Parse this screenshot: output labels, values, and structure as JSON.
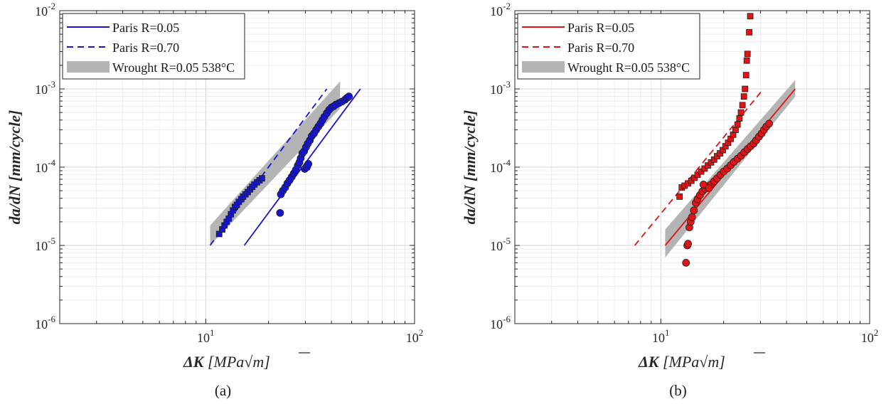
{
  "chart_data": [
    {
      "type": "scatter",
      "panel_label": "(a)",
      "xlabel_symbol": "ΔK",
      "xlabel_unit_pre": "[MPa",
      "xlabel_unit_post": "m]",
      "ylabel_text": "da/dN [mm/cycle]",
      "xscale": "log",
      "yscale": "log",
      "xlim": [
        2,
        100
      ],
      "ylim": [
        1e-06,
        0.01
      ],
      "grid": true,
      "legend_position": "top-left",
      "x_ticks": [
        {
          "value": 10,
          "base": "10",
          "exp": "1"
        },
        {
          "value": 100,
          "base": "10",
          "exp": "2"
        }
      ],
      "y_ticks": [
        {
          "value": 1e-06,
          "base": "10",
          "exp": "-6"
        },
        {
          "value": 1e-05,
          "base": "10",
          "exp": "-5"
        },
        {
          "value": 0.0001,
          "base": "10",
          "exp": "-4"
        },
        {
          "value": 0.001,
          "base": "10",
          "exp": "-3"
        },
        {
          "value": 0.01,
          "base": "10",
          "exp": "-2"
        }
      ],
      "legend": [
        {
          "label": "Paris R=0.05",
          "style": "solid"
        },
        {
          "label": "Paris R=0.70",
          "style": "dashed"
        },
        {
          "label": "Wrought R=0.05 538°C",
          "style": "band"
        }
      ],
      "color": "#1414d2",
      "band_color": "#b4b4b4",
      "band": {
        "x": [
          10.5,
          44
        ],
        "y_low": [
          1e-05,
          0.00056
        ],
        "y_high": [
          1.8e-05,
          0.00125
        ]
      },
      "paris_lines": [
        {
          "name": "Paris R=0.05",
          "style": "solid",
          "x": [
            15.3,
            55
          ],
          "y": [
            1e-05,
            0.001
          ]
        },
        {
          "name": "Paris R=0.70",
          "style": "dashed",
          "x": [
            10.5,
            38
          ],
          "y": [
            1e-05,
            0.001
          ]
        }
      ],
      "series": [
        {
          "marker": "square",
          "points": [
            [
              11.6,
              1.4e-05
            ],
            [
              12.0,
              1.6e-05
            ],
            [
              12.3,
              1.8e-05
            ],
            [
              12.6,
              2e-05
            ],
            [
              12.9,
              2.2e-05
            ],
            [
              13.2,
              2.5e-05
            ],
            [
              13.5,
              2.8e-05
            ],
            [
              13.8,
              3.1e-05
            ],
            [
              14.1,
              3.3e-05
            ],
            [
              14.4,
              3.6e-05
            ],
            [
              14.8,
              3.9e-05
            ],
            [
              15.1,
              4.2e-05
            ],
            [
              15.5,
              4.5e-05
            ],
            [
              15.9,
              4.8e-05
            ],
            [
              16.3,
              5.2e-05
            ],
            [
              16.7,
              5.6e-05
            ],
            [
              17.1,
              6e-05
            ],
            [
              17.6,
              6.4e-05
            ],
            [
              18.1,
              6.8e-05
            ],
            [
              18.6,
              7.2e-05
            ]
          ]
        },
        {
          "marker": "circle",
          "points": [
            [
              22.7,
              2.6e-05
            ],
            [
              22.9,
              4.5e-05
            ],
            [
              23.4,
              5e-05
            ],
            [
              24.0,
              5.5e-05
            ],
            [
              24.6,
              6.2e-05
            ],
            [
              25.2,
              6.8e-05
            ],
            [
              25.8,
              7.5e-05
            ],
            [
              26.4,
              8.3e-05
            ],
            [
              27.0,
              9.2e-05
            ],
            [
              27.6,
              0.000105
            ],
            [
              28.1,
              0.000115
            ],
            [
              28.5,
              0.00013
            ],
            [
              29.0,
              0.00015
            ],
            [
              29.6,
              0.00016
            ],
            [
              30.2,
              0.00018
            ],
            [
              30.8,
              0.0002
            ],
            [
              31.5,
              0.00022
            ],
            [
              32.2,
              0.00025
            ],
            [
              33.0,
              0.00027
            ],
            [
              33.8,
              0.0003
            ],
            [
              34.6,
              0.00033
            ],
            [
              35.4,
              0.00036
            ],
            [
              36.2,
              0.0004
            ],
            [
              37.0,
              0.00044
            ],
            [
              38.0,
              0.00049
            ],
            [
              39.0,
              0.00054
            ],
            [
              40.0,
              0.00058
            ],
            [
              41.0,
              0.0006
            ],
            [
              42.0,
              0.00063
            ],
            [
              43.5,
              0.00066
            ],
            [
              45.0,
              0.00069
            ],
            [
              46.5,
              0.00073
            ],
            [
              47.5,
              0.00077
            ],
            [
              48.5,
              0.0008
            ],
            [
              29.8,
              9.5e-05
            ],
            [
              30.5,
              0.0001
            ],
            [
              31.0,
              0.00011
            ]
          ]
        }
      ]
    },
    {
      "type": "scatter",
      "panel_label": "(b)",
      "xlabel_symbol": "ΔK",
      "xlabel_unit_pre": "[MPa",
      "xlabel_unit_post": "m]",
      "ylabel_text": "da/dN [mm/cycle]",
      "xscale": "log",
      "yscale": "log",
      "xlim": [
        2,
        100
      ],
      "ylim": [
        1e-06,
        0.01
      ],
      "grid": true,
      "legend_position": "top-left",
      "x_ticks": [
        {
          "value": 10,
          "base": "10",
          "exp": "1"
        },
        {
          "value": 100,
          "base": "10",
          "exp": "2"
        }
      ],
      "y_ticks": [
        {
          "value": 1e-06,
          "base": "10",
          "exp": "-6"
        },
        {
          "value": 1e-05,
          "base": "10",
          "exp": "-5"
        },
        {
          "value": 0.0001,
          "base": "10",
          "exp": "-4"
        },
        {
          "value": 0.001,
          "base": "10",
          "exp": "-3"
        },
        {
          "value": 0.01,
          "base": "10",
          "exp": "-2"
        }
      ],
      "legend": [
        {
          "label": "Paris R=0.05",
          "style": "solid"
        },
        {
          "label": "Paris R=0.70",
          "style": "dashed"
        },
        {
          "label": "Wrought R=0.05 538°C",
          "style": "band"
        }
      ],
      "color": "#e01414",
      "band_color": "#b4b4b4",
      "band": {
        "x": [
          10.5,
          44
        ],
        "y_low": [
          7e-06,
          0.0008
        ],
        "y_high": [
          1.6e-05,
          0.0013
        ]
      },
      "paris_lines": [
        {
          "name": "Paris R=0.05",
          "style": "solid",
          "x": [
            10.5,
            44
          ],
          "y": [
            1e-05,
            0.001
          ]
        },
        {
          "name": "Paris R=0.70",
          "style": "dashed",
          "x": [
            7.5,
            31
          ],
          "y": [
            1e-05,
            0.001
          ]
        }
      ],
      "series": [
        {
          "marker": "square",
          "points": [
            [
              12.3,
              4.2e-05
            ],
            [
              12.6,
              5.5e-05
            ],
            [
              13.0,
              5.8e-05
            ],
            [
              13.5,
              6.2e-05
            ],
            [
              14.0,
              6.7e-05
            ],
            [
              14.5,
              7.3e-05
            ],
            [
              15.0,
              8e-05
            ],
            [
              15.6,
              8.8e-05
            ],
            [
              16.2,
              9.6e-05
            ],
            [
              16.8,
              0.000105
            ],
            [
              17.4,
              0.000115
            ],
            [
              18.0,
              0.000125
            ],
            [
              18.6,
              0.000138
            ],
            [
              19.2,
              0.00015
            ],
            [
              19.8,
              0.000165
            ],
            [
              20.4,
              0.000185
            ],
            [
              21.0,
              0.000205
            ],
            [
              21.6,
              0.00023
            ],
            [
              22.2,
              0.00026
            ],
            [
              22.8,
              0.0003
            ],
            [
              23.3,
              0.00035
            ],
            [
              23.8,
              0.00042
            ],
            [
              24.2,
              0.0005
            ],
            [
              24.6,
              0.00062
            ],
            [
              25.0,
              0.0008
            ],
            [
              25.3,
              0.001
            ],
            [
              25.6,
              0.0015
            ],
            [
              25.8,
              0.0023
            ],
            [
              26.0,
              0.0028
            ],
            [
              26.5,
              0.0053
            ],
            [
              26.8,
              0.0085
            ]
          ]
        },
        {
          "marker": "circle",
          "points": [
            [
              13.2,
              6e-06
            ],
            [
              13.4,
              1e-05
            ],
            [
              13.5,
              1.05e-05
            ],
            [
              13.7,
              1.7e-05
            ],
            [
              13.9,
              2e-05
            ],
            [
              14.1,
              2.3e-05
            ],
            [
              14.4,
              2.8e-05
            ],
            [
              14.7,
              3.5e-05
            ],
            [
              15.0,
              3.9e-05
            ],
            [
              15.4,
              4.4e-05
            ],
            [
              15.8,
              4.9e-05
            ],
            [
              16.3,
              5.3e-05
            ],
            [
              16.8,
              5.7e-05
            ],
            [
              17.4,
              6e-05
            ],
            [
              18.0,
              6.6e-05
            ],
            [
              18.6,
              7.2e-05
            ],
            [
              19.3,
              8e-05
            ],
            [
              20.0,
              8.8e-05
            ],
            [
              20.8,
              9.6e-05
            ],
            [
              21.6,
              0.000106
            ],
            [
              22.4,
              0.000117
            ],
            [
              23.3,
              0.000128
            ],
            [
              24.2,
              0.00014
            ],
            [
              25.1,
              0.000155
            ],
            [
              26.0,
              0.00017
            ],
            [
              26.9,
              0.000185
            ],
            [
              27.8,
              0.0002
            ],
            [
              28.6,
              0.00022
            ],
            [
              29.5,
              0.000245
            ],
            [
              30.4,
              0.00027
            ],
            [
              31.2,
              0.0003
            ],
            [
              32.0,
              0.00033
            ],
            [
              33.0,
              0.00036
            ],
            [
              16.0,
              6e-05
            ],
            [
              17.0,
              5.4e-05
            ]
          ]
        }
      ]
    }
  ]
}
